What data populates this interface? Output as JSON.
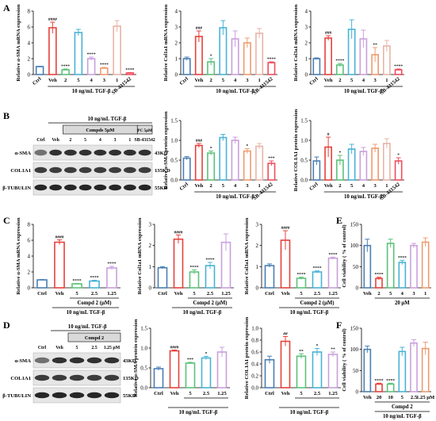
{
  "figure": {
    "panel_letters": [
      "A",
      "B",
      "C",
      "D",
      "E",
      "F"
    ],
    "colors": [
      "#4a7fb5",
      "#e8413b",
      "#5bc27a",
      "#48b3d6",
      "#c9a0dc",
      "#ef9b6f",
      "#e8b4a8",
      "#f04c5c",
      "#cf7de0",
      "#9aa3ab"
    ],
    "panel_A": {
      "treatment_label": "10 ng/mL TGF-β",
      "charts": [
        {
          "type": "bar",
          "ylabel": "Relative α-SMA mRNA expression",
          "ylim": [
            0,
            8
          ],
          "yticks": [
            0,
            2,
            4,
            6,
            8
          ],
          "categories": [
            "Ctrl",
            "Veh",
            "2",
            "5",
            "4",
            "3",
            "1",
            "SB-431542"
          ],
          "values": [
            1.0,
            5.9,
            0.6,
            5.3,
            2.0,
            0.8,
            6.1,
            0.2
          ],
          "errors": [
            0.05,
            0.7,
            0.1,
            0.4,
            0.2,
            0.1,
            0.7,
            0.05
          ],
          "annotations": [
            "",
            "####",
            "****",
            "",
            "****",
            "****",
            "",
            "****"
          ]
        },
        {
          "type": "bar",
          "ylabel": "Relative Col1a1 mRNA expression",
          "ylim": [
            0,
            4
          ],
          "yticks": [
            0,
            1,
            2,
            3,
            4
          ],
          "categories": [
            "Ctrl",
            "Veh",
            "2",
            "5",
            "4",
            "3",
            "1",
            "SB-431542"
          ],
          "values": [
            1.0,
            2.4,
            0.8,
            2.95,
            2.25,
            2.0,
            2.6,
            0.75
          ],
          "errors": [
            0.1,
            0.35,
            0.2,
            0.45,
            0.5,
            0.3,
            0.3,
            0.05
          ],
          "annotations": [
            "",
            "###",
            "*",
            "",
            "",
            "",
            "",
            "****"
          ]
        },
        {
          "type": "bar",
          "ylabel": "Relative Col3a1 mRNA expression",
          "ylim": [
            0,
            4
          ],
          "yticks": [
            0,
            1,
            2,
            3,
            4
          ],
          "categories": [
            "Ctrl",
            "Veh",
            "2",
            "5",
            "4",
            "3",
            "1",
            "SB-431542"
          ],
          "values": [
            1.0,
            2.3,
            0.6,
            2.85,
            2.25,
            1.25,
            1.8,
            0.3
          ],
          "errors": [
            0.05,
            0.15,
            0.1,
            0.6,
            0.55,
            0.45,
            0.35,
            0.05
          ],
          "annotations": [
            "",
            "###",
            "****",
            "",
            "",
            "**",
            "",
            "****"
          ]
        }
      ]
    },
    "panel_B": {
      "treatment_label": "10 ng/mL TGF-β",
      "blot_header": "10 ng/mL TGF-β",
      "blot_compd_label": "Compds 5μM",
      "blot_pc_label": "PC 5μM",
      "blot_lanes": [
        "Ctrl",
        "Veh",
        "2",
        "5",
        "4",
        "3",
        "1",
        "SB-431542"
      ],
      "blot_rows": [
        "α-SMA",
        "COL1A1",
        "β-TUBULIN"
      ],
      "blot_kd": [
        "43KD",
        "135KD",
        "55KD"
      ],
      "charts": [
        {
          "type": "bar",
          "ylabel": "Relative α-SMA protein expression",
          "ylim": [
            0,
            1.5
          ],
          "yticks": [
            "0.0",
            "0.5",
            "1.0",
            "1.5"
          ],
          "categories": [
            "Ctrl",
            "Veh",
            "2",
            "5",
            "4",
            "3",
            "1",
            "SB-431542"
          ],
          "values": [
            0.55,
            0.87,
            0.68,
            1.07,
            1.0,
            0.73,
            0.85,
            0.42
          ],
          "errors": [
            0.04,
            0.05,
            0.05,
            0.08,
            0.08,
            0.06,
            0.07,
            0.06
          ],
          "annotations": [
            "",
            "###",
            "*",
            "",
            "",
            "*",
            "",
            "***"
          ]
        },
        {
          "type": "bar",
          "ylabel": "Relative COL1A1 protein expression",
          "ylim": [
            0,
            1.5
          ],
          "yticks": [
            "0.0",
            "0.5",
            "1.0",
            "1.5"
          ],
          "categories": [
            "Ctrl",
            "Veh",
            "2",
            "5",
            "4",
            "3",
            "1",
            "SB-431542"
          ],
          "values": [
            0.48,
            0.83,
            0.5,
            0.78,
            0.72,
            0.8,
            0.92,
            0.48
          ],
          "errors": [
            0.1,
            0.25,
            0.12,
            0.12,
            0.1,
            0.1,
            0.12,
            0.08
          ],
          "annotations": [
            "",
            "#",
            "*",
            "",
            "",
            "",
            "",
            "*"
          ]
        }
      ]
    },
    "panel_C": {
      "treatment_label": "10 ng/mL TGF-β",
      "compd_label": "Compd 2 (μM)",
      "charts": [
        {
          "type": "bar",
          "ylabel": "Relative α-SMA mRNA expression",
          "ylim": [
            0,
            8
          ],
          "yticks": [
            0,
            2,
            4,
            6,
            8
          ],
          "categories": [
            "Ctrl",
            "Veh",
            "5",
            "2.5",
            "1.25"
          ],
          "values": [
            1.0,
            5.75,
            0.5,
            0.85,
            2.5
          ],
          "errors": [
            0.05,
            0.3,
            0.05,
            0.1,
            0.2
          ],
          "annotations": [
            "",
            "####",
            "****",
            "****",
            "****"
          ]
        },
        {
          "type": "bar",
          "ylabel": "Relative Col1a1 mRNA expression",
          "ylim": [
            0,
            3
          ],
          "yticks": [
            0,
            1,
            2,
            3
          ],
          "categories": [
            "Ctrl",
            "Veh",
            "5",
            "2.5",
            "1.25"
          ],
          "values": [
            0.95,
            2.3,
            0.75,
            1.05,
            2.15
          ],
          "errors": [
            0.05,
            0.2,
            0.1,
            0.15,
            0.4
          ],
          "annotations": [
            "",
            "####",
            "****",
            "****",
            ""
          ]
        },
        {
          "type": "bar",
          "ylabel": "Relative Col3a1 mRNA expression",
          "ylim": [
            0,
            3
          ],
          "yticks": [
            0,
            1,
            2,
            3
          ],
          "categories": [
            "Ctrl",
            "Veh",
            "5",
            "2.5",
            "1.25"
          ],
          "values": [
            1.05,
            2.25,
            0.45,
            0.75,
            1.4
          ],
          "errors": [
            0.08,
            0.45,
            0.05,
            0.05,
            0.05
          ],
          "annotations": [
            "",
            "####",
            "****",
            "****",
            "****"
          ]
        }
      ]
    },
    "panel_D": {
      "treatment_label": "10 ng/mL TGF-β",
      "blot_header": "10 ng/mL TGF-β",
      "blot_compd_label": "Compd 2",
      "blot_lanes": [
        "Ctrl",
        "Veh",
        "5",
        "2.5",
        "1.25 μM"
      ],
      "blot_rows": [
        "α-SMA",
        "COL1A1",
        "β-TUBULIN"
      ],
      "blot_kd": [
        "43KD",
        "135KD",
        "55KD"
      ],
      "charts": [
        {
          "type": "bar",
          "ylabel": "Relative α-SMA protein expression",
          "ylim": [
            0,
            1.5
          ],
          "yticks": [
            "0.0",
            "0.5",
            "1.0",
            "1.5"
          ],
          "categories": [
            "Ctrl",
            "Veh",
            "5",
            "2.5",
            "1.25"
          ],
          "values": [
            0.48,
            0.93,
            0.62,
            0.75,
            0.9
          ],
          "errors": [
            0.04,
            0.02,
            0.02,
            0.04,
            0.12
          ],
          "annotations": [
            "",
            "####",
            "***",
            "*",
            ""
          ]
        },
        {
          "type": "bar",
          "ylabel": "Relative COL1A1 protein expression",
          "ylim": [
            0,
            1.0
          ],
          "yticks": [
            "0.0",
            "0.2",
            "0.4",
            "0.6",
            "0.8",
            "1.0"
          ],
          "categories": [
            "Ctrl",
            "Veh",
            "5",
            "2.5",
            "1.25"
          ],
          "values": [
            0.47,
            0.78,
            0.53,
            0.6,
            0.56
          ],
          "errors": [
            0.06,
            0.08,
            0.04,
            0.06,
            0.04
          ],
          "annotations": [
            "",
            "##",
            "**",
            "*",
            "**"
          ]
        }
      ]
    },
    "panel_E": {
      "treatment_label": "20 μM",
      "chart": {
        "type": "bar",
        "ylabel": "Cell viability ( % of control)",
        "ylim": [
          0,
          150
        ],
        "yticks": [
          0,
          50,
          100,
          150
        ],
        "categories": [
          "Veh",
          "2",
          "5",
          "4",
          "3",
          "1"
        ],
        "values": [
          100,
          22,
          105,
          60,
          100,
          108
        ],
        "errors": [
          15,
          3,
          10,
          5,
          5,
          10
        ],
        "annotations": [
          "",
          "****",
          "",
          "****",
          "",
          ""
        ]
      }
    },
    "panel_F": {
      "treatment_label": "10 ng/mL TGF-β",
      "compd_label": "Compd 2",
      "chart": {
        "type": "bar",
        "ylabel": "Cell viability ( % of control)",
        "ylim": [
          0,
          150
        ],
        "yticks": [
          0,
          50,
          100,
          150
        ],
        "categories": [
          "Veh",
          "20",
          "10",
          "5",
          "2.5",
          "1.25 μM"
        ],
        "values": [
          100,
          18,
          18,
          95,
          115,
          102
        ],
        "errors": [
          8,
          2,
          2,
          10,
          8,
          15
        ],
        "annotations": [
          "",
          "****",
          "****",
          "",
          "",
          ""
        ]
      }
    }
  }
}
